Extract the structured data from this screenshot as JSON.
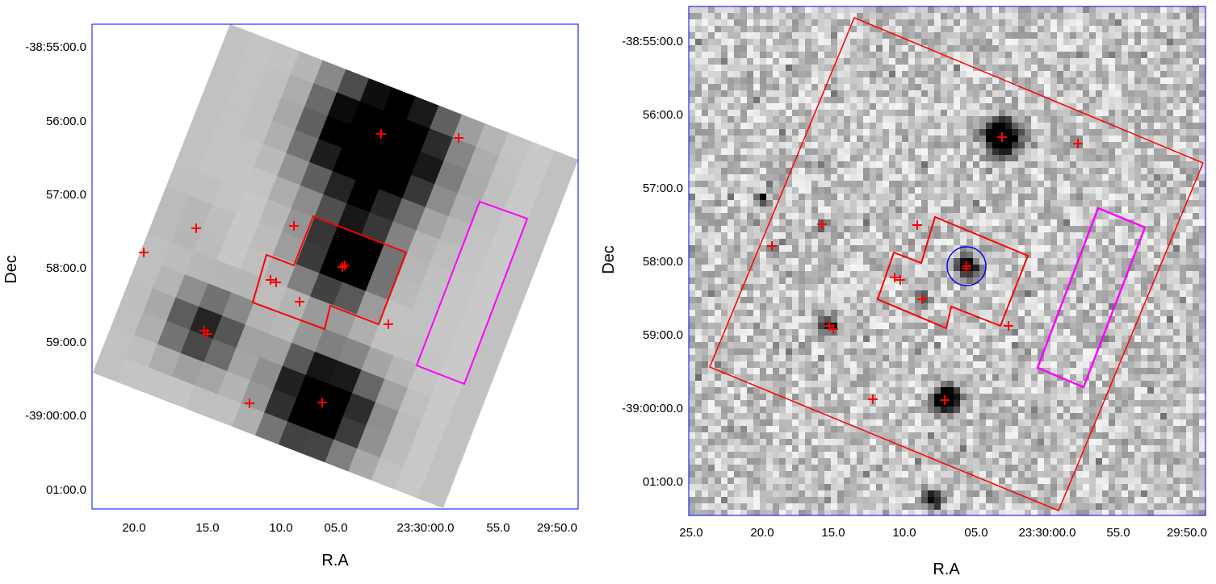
{
  "chart_data": [
    {
      "type": "image",
      "xlabel": "R.A",
      "ylabel": "Dec",
      "x_tick_labels": [
        "20.0",
        "15.0",
        "10.0",
        "05.0",
        "23:30:00.0",
        "55.0",
        "29:50.0"
      ],
      "y_tick_labels": [
        "-38:55:00.0",
        "56:00.0",
        "57:00.0",
        "58:00.0",
        "59:00.0",
        "-39:00:00.0",
        "01:00.0"
      ],
      "colors": {
        "frame": "#0000ff",
        "markers": "#ff0000",
        "source_region": "#ff0000",
        "background_region": "#ff00ff"
      },
      "marker_count": 14
    },
    {
      "type": "image",
      "xlabel": "R.A",
      "ylabel": "Dec",
      "x_tick_labels": [
        "25.0",
        "20.0",
        "15.0",
        "10.0",
        "05.0",
        "23:30:00.0",
        "55.0",
        "29:50.0"
      ],
      "y_tick_labels": [
        "-38:55:00.0",
        "56:00.0",
        "57:00.0",
        "58:00.0",
        "59:00.0",
        "-39:00:00.0",
        "01:00.0"
      ],
      "colors": {
        "frame": "#0000ff",
        "markers": "#ff0000",
        "source_region": "#ff0000",
        "background_region": "#ff00ff",
        "circle": "#0000ff"
      },
      "marker_count": 14
    }
  ]
}
